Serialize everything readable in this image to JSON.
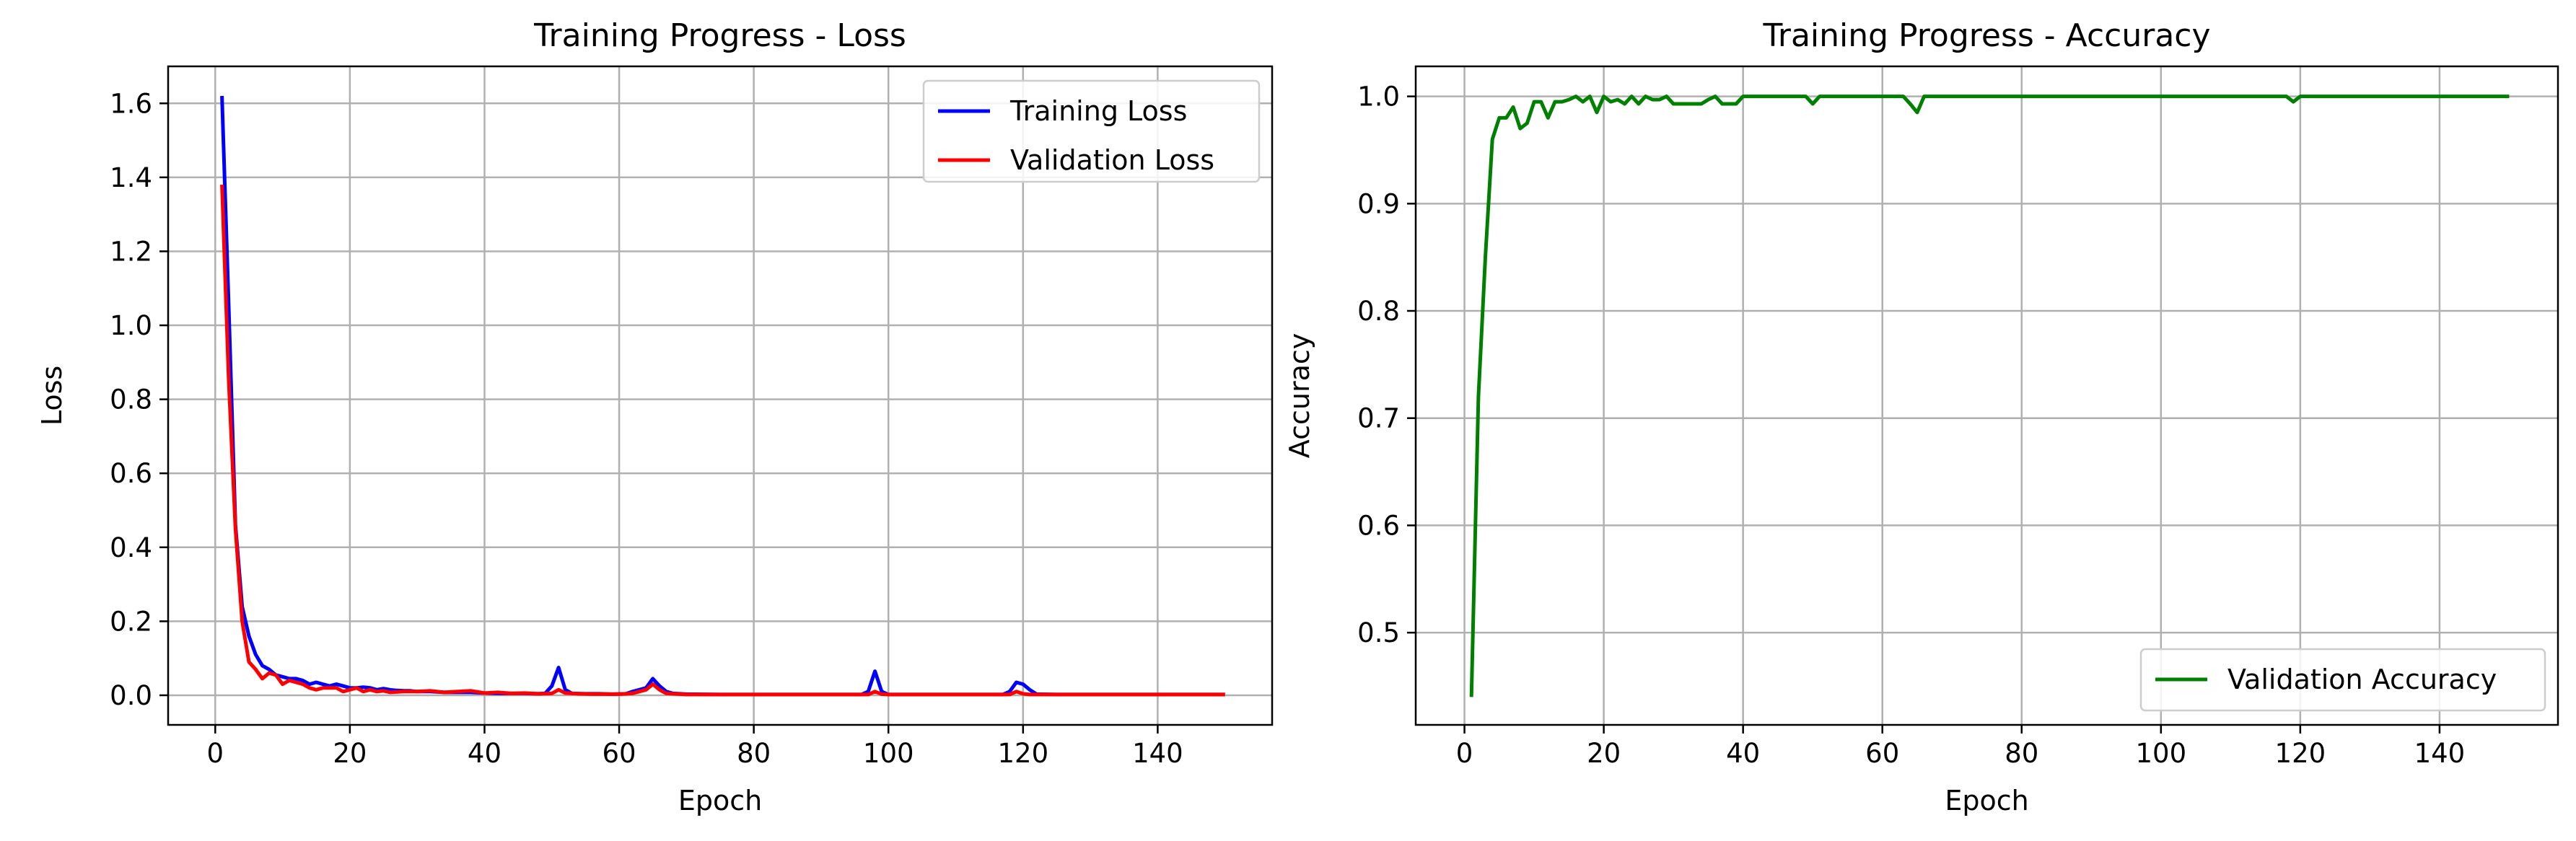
{
  "chart_data": [
    {
      "type": "line",
      "title": "Training Progress - Loss",
      "xlabel": "Epoch",
      "ylabel": "Loss",
      "xlim": [
        -7,
        157
      ],
      "ylim": [
        -0.08,
        1.7
      ],
      "xticks": [
        0,
        20,
        40,
        60,
        80,
        100,
        120,
        140
      ],
      "yticks": [
        0.0,
        0.2,
        0.4,
        0.6,
        0.8,
        1.0,
        1.2,
        1.4,
        1.6
      ],
      "ytick_decimals": 1,
      "grid": true,
      "legend_position": "top-right",
      "series": [
        {
          "name": "Training Loss",
          "color": "#0000ff",
          "x": [
            1,
            2,
            3,
            4,
            5,
            6,
            7,
            8,
            9,
            10,
            11,
            12,
            13,
            14,
            15,
            16,
            17,
            18,
            19,
            20,
            21,
            22,
            23,
            24,
            25,
            26,
            27,
            28,
            29,
            30,
            32,
            34,
            36,
            38,
            40,
            42,
            44,
            46,
            48,
            49,
            50,
            51,
            52,
            53,
            55,
            57,
            59,
            61,
            62,
            63,
            64,
            65,
            66,
            67,
            68,
            70,
            75,
            80,
            90,
            96,
            97,
            98,
            99,
            100,
            101,
            105,
            110,
            115,
            117,
            118,
            119,
            120,
            121,
            122,
            125,
            130,
            140,
            150
          ],
          "y": [
            1.62,
            1.05,
            0.46,
            0.24,
            0.16,
            0.11,
            0.08,
            0.07,
            0.055,
            0.05,
            0.045,
            0.045,
            0.04,
            0.03,
            0.035,
            0.03,
            0.025,
            0.03,
            0.025,
            0.02,
            0.02,
            0.022,
            0.02,
            0.015,
            0.018,
            0.015,
            0.013,
            0.012,
            0.012,
            0.01,
            0.01,
            0.008,
            0.008,
            0.008,
            0.006,
            0.005,
            0.005,
            0.005,
            0.004,
            0.005,
            0.025,
            0.075,
            0.015,
            0.005,
            0.004,
            0.004,
            0.003,
            0.004,
            0.01,
            0.015,
            0.02,
            0.045,
            0.025,
            0.01,
            0.005,
            0.003,
            0.002,
            0.002,
            0.002,
            0.002,
            0.01,
            0.065,
            0.01,
            0.002,
            0.002,
            0.002,
            0.002,
            0.002,
            0.002,
            0.01,
            0.035,
            0.03,
            0.015,
            0.003,
            0.002,
            0.002,
            0.002,
            0.002
          ]
        },
        {
          "name": "Validation Loss",
          "color": "#ff0000",
          "x": [
            1,
            2,
            3,
            4,
            5,
            6,
            7,
            8,
            9,
            10,
            11,
            12,
            13,
            14,
            15,
            16,
            17,
            18,
            19,
            20,
            21,
            22,
            23,
            24,
            25,
            26,
            28,
            30,
            32,
            34,
            36,
            38,
            40,
            42,
            44,
            46,
            48,
            50,
            51,
            52,
            54,
            56,
            58,
            60,
            62,
            63,
            64,
            65,
            66,
            67,
            70,
            80,
            90,
            97,
            98,
            99,
            100,
            105,
            110,
            118,
            119,
            120,
            121,
            125,
            130,
            140,
            150
          ],
          "y": [
            1.38,
            0.85,
            0.45,
            0.2,
            0.09,
            0.07,
            0.045,
            0.06,
            0.055,
            0.03,
            0.04,
            0.035,
            0.03,
            0.02,
            0.015,
            0.02,
            0.02,
            0.02,
            0.01,
            0.015,
            0.02,
            0.01,
            0.015,
            0.01,
            0.012,
            0.008,
            0.01,
            0.01,
            0.012,
            0.008,
            0.01,
            0.012,
            0.006,
            0.008,
            0.005,
            0.006,
            0.004,
            0.005,
            0.015,
            0.006,
            0.004,
            0.003,
            0.003,
            0.003,
            0.005,
            0.01,
            0.015,
            0.03,
            0.015,
            0.005,
            0.002,
            0.002,
            0.002,
            0.002,
            0.01,
            0.003,
            0.002,
            0.002,
            0.002,
            0.002,
            0.01,
            0.004,
            0.002,
            0.002,
            0.002,
            0.002,
            0.002
          ]
        }
      ]
    },
    {
      "type": "line",
      "title": "Training Progress - Accuracy",
      "xlabel": "Epoch",
      "ylabel": "Accuracy",
      "xlim": [
        -7,
        157
      ],
      "ylim": [
        0.414,
        1.028
      ],
      "xticks": [
        0,
        20,
        40,
        60,
        80,
        100,
        120,
        140
      ],
      "yticks": [
        0.5,
        0.6,
        0.7,
        0.8,
        0.9,
        1.0
      ],
      "ytick_decimals": 1,
      "grid": true,
      "legend_position": "bottom-right",
      "series": [
        {
          "name": "Validation Accuracy",
          "color": "#008000",
          "x": [
            1,
            2,
            3,
            4,
            5,
            6,
            7,
            8,
            9,
            10,
            11,
            12,
            13,
            14,
            15,
            16,
            17,
            18,
            19,
            20,
            21,
            22,
            23,
            24,
            25,
            26,
            27,
            28,
            29,
            30,
            32,
            34,
            35,
            36,
            37,
            38,
            39,
            40,
            42,
            45,
            48,
            49,
            50,
            51,
            55,
            60,
            62,
            63,
            64,
            65,
            66,
            67,
            70,
            80,
            90,
            100,
            110,
            117,
            118,
            119,
            120,
            125,
            130,
            140,
            150
          ],
          "y": [
            0.44,
            0.72,
            0.85,
            0.96,
            0.98,
            0.98,
            0.99,
            0.97,
            0.975,
            0.995,
            0.995,
            0.98,
            0.995,
            0.995,
            0.997,
            1.0,
            0.995,
            1.0,
            0.985,
            1.0,
            0.995,
            0.997,
            0.993,
            1.0,
            0.993,
            1.0,
            0.997,
            0.997,
            1.0,
            0.993,
            0.993,
            0.993,
            0.997,
            1.0,
            0.993,
            0.993,
            0.993,
            1.0,
            1.0,
            1.0,
            1.0,
            1.0,
            0.993,
            1.0,
            1.0,
            1.0,
            1.0,
            1.0,
            0.993,
            0.985,
            1.0,
            1.0,
            1.0,
            1.0,
            1.0,
            1.0,
            1.0,
            1.0,
            1.0,
            0.995,
            1.0,
            1.0,
            1.0,
            1.0,
            1.0
          ]
        }
      ]
    }
  ]
}
